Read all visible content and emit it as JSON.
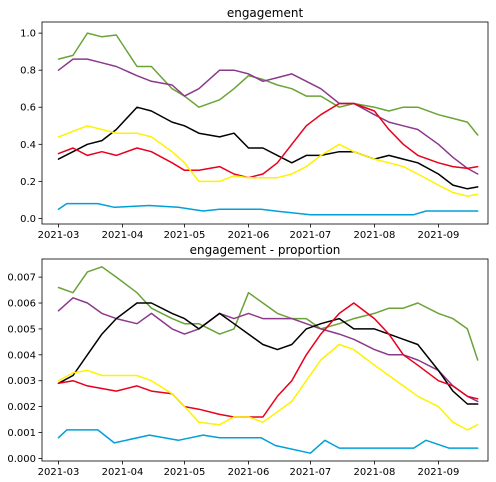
{
  "chart_data": [
    {
      "type": "line",
      "title": "engagement",
      "xlabel": "",
      "ylabel": "",
      "xlim": [
        "2021-02-21",
        "2021-09-25"
      ],
      "ylim": [
        -0.03,
        1.06
      ],
      "grid": false,
      "xticks": [
        "2021-03",
        "2021-04",
        "2021-05",
        "2021-06",
        "2021-07",
        "2021-08",
        "2021-09"
      ],
      "yticks": [
        0.0,
        0.2,
        0.4,
        0.6,
        0.8,
        1.0
      ],
      "ytick_labels": [
        "0.0",
        "0.2",
        "0.4",
        "0.6",
        "0.8",
        "1.0"
      ],
      "series": [
        {
          "color": "#6aa336",
          "x": [
            "2021-03-01",
            "2021-03-08",
            "2021-03-15",
            "2021-03-22",
            "2021-03-29",
            "2021-04-08",
            "2021-04-15",
            "2021-04-25",
            "2021-05-01",
            "2021-05-08",
            "2021-05-18",
            "2021-05-25",
            "2021-06-01",
            "2021-06-08",
            "2021-06-15",
            "2021-06-22",
            "2021-06-29",
            "2021-07-06",
            "2021-07-15",
            "2021-07-22",
            "2021-08-01",
            "2021-08-08",
            "2021-08-15",
            "2021-08-22",
            "2021-09-01",
            "2021-09-08",
            "2021-09-15",
            "2021-09-20"
          ],
          "values": [
            0.86,
            0.88,
            1.0,
            0.98,
            0.99,
            0.82,
            0.82,
            0.7,
            0.66,
            0.6,
            0.64,
            0.7,
            0.77,
            0.75,
            0.72,
            0.7,
            0.66,
            0.66,
            0.6,
            0.62,
            0.6,
            0.58,
            0.6,
            0.6,
            0.56,
            0.54,
            0.52,
            0.45
          ]
        },
        {
          "color": "#8b3a8b",
          "x": [
            "2021-03-01",
            "2021-03-08",
            "2021-03-15",
            "2021-03-22",
            "2021-03-29",
            "2021-04-08",
            "2021-04-15",
            "2021-04-25",
            "2021-05-01",
            "2021-05-08",
            "2021-05-18",
            "2021-05-25",
            "2021-06-01",
            "2021-06-08",
            "2021-06-15",
            "2021-06-22",
            "2021-06-29",
            "2021-07-06",
            "2021-07-15",
            "2021-07-22",
            "2021-08-01",
            "2021-08-08",
            "2021-08-15",
            "2021-08-22",
            "2021-09-01",
            "2021-09-08",
            "2021-09-15",
            "2021-09-20"
          ],
          "values": [
            0.8,
            0.86,
            0.86,
            0.84,
            0.82,
            0.77,
            0.74,
            0.72,
            0.66,
            0.7,
            0.8,
            0.8,
            0.78,
            0.74,
            0.76,
            0.78,
            0.74,
            0.7,
            0.62,
            0.62,
            0.56,
            0.52,
            0.5,
            0.48,
            0.4,
            0.33,
            0.27,
            0.24
          ]
        },
        {
          "color": "#000000",
          "x": [
            "2021-03-01",
            "2021-03-08",
            "2021-03-15",
            "2021-03-22",
            "2021-03-29",
            "2021-04-08",
            "2021-04-15",
            "2021-04-25",
            "2021-05-01",
            "2021-05-08",
            "2021-05-18",
            "2021-05-25",
            "2021-06-01",
            "2021-06-08",
            "2021-06-15",
            "2021-06-22",
            "2021-06-29",
            "2021-07-06",
            "2021-07-15",
            "2021-07-22",
            "2021-08-01",
            "2021-08-08",
            "2021-08-15",
            "2021-08-22",
            "2021-09-01",
            "2021-09-08",
            "2021-09-15",
            "2021-09-20"
          ],
          "values": [
            0.32,
            0.36,
            0.4,
            0.42,
            0.48,
            0.6,
            0.58,
            0.52,
            0.5,
            0.46,
            0.44,
            0.46,
            0.38,
            0.38,
            0.34,
            0.3,
            0.34,
            0.34,
            0.36,
            0.36,
            0.32,
            0.34,
            0.32,
            0.3,
            0.24,
            0.18,
            0.16,
            0.17
          ]
        },
        {
          "color": "#e8001c",
          "x": [
            "2021-03-01",
            "2021-03-08",
            "2021-03-15",
            "2021-03-22",
            "2021-03-29",
            "2021-04-08",
            "2021-04-15",
            "2021-04-25",
            "2021-05-01",
            "2021-05-08",
            "2021-05-18",
            "2021-05-25",
            "2021-06-01",
            "2021-06-08",
            "2021-06-15",
            "2021-06-22",
            "2021-06-29",
            "2021-07-06",
            "2021-07-15",
            "2021-07-22",
            "2021-08-01",
            "2021-08-08",
            "2021-08-15",
            "2021-08-22",
            "2021-09-01",
            "2021-09-08",
            "2021-09-15",
            "2021-09-20"
          ],
          "values": [
            0.35,
            0.38,
            0.34,
            0.36,
            0.34,
            0.38,
            0.36,
            0.3,
            0.26,
            0.26,
            0.28,
            0.24,
            0.22,
            0.24,
            0.3,
            0.4,
            0.5,
            0.56,
            0.62,
            0.62,
            0.58,
            0.48,
            0.4,
            0.34,
            0.3,
            0.28,
            0.27,
            0.28
          ]
        },
        {
          "color": "#fff200",
          "x": [
            "2021-03-01",
            "2021-03-08",
            "2021-03-15",
            "2021-03-22",
            "2021-03-29",
            "2021-04-08",
            "2021-04-15",
            "2021-04-25",
            "2021-05-01",
            "2021-05-08",
            "2021-05-18",
            "2021-05-25",
            "2021-06-01",
            "2021-06-08",
            "2021-06-15",
            "2021-06-22",
            "2021-06-29",
            "2021-07-06",
            "2021-07-15",
            "2021-07-22",
            "2021-08-01",
            "2021-08-08",
            "2021-08-15",
            "2021-08-22",
            "2021-09-01",
            "2021-09-08",
            "2021-09-15",
            "2021-09-20"
          ],
          "values": [
            0.44,
            0.47,
            0.5,
            0.48,
            0.46,
            0.46,
            0.44,
            0.36,
            0.3,
            0.2,
            0.2,
            0.23,
            0.22,
            0.22,
            0.22,
            0.24,
            0.28,
            0.34,
            0.4,
            0.36,
            0.32,
            0.3,
            0.28,
            0.24,
            0.18,
            0.14,
            0.12,
            0.13
          ]
        },
        {
          "color": "#00a0d8",
          "x": [
            "2021-03-01",
            "2021-03-05",
            "2021-03-20",
            "2021-03-28",
            "2021-04-14",
            "2021-04-28",
            "2021-05-10",
            "2021-05-18",
            "2021-06-07",
            "2021-06-14",
            "2021-07-01",
            "2021-07-15",
            "2021-08-20",
            "2021-08-26",
            "2021-09-06",
            "2021-09-20"
          ],
          "values": [
            0.05,
            0.08,
            0.08,
            0.06,
            0.07,
            0.06,
            0.04,
            0.05,
            0.05,
            0.04,
            0.02,
            0.02,
            0.02,
            0.04,
            0.04,
            0.04
          ]
        }
      ]
    },
    {
      "type": "line",
      "title": "engagement - proportion",
      "xlabel": "",
      "ylabel": "",
      "xlim": [
        "2021-02-21",
        "2021-09-25"
      ],
      "ylim": [
        -0.0001,
        0.0077
      ],
      "grid": false,
      "xticks": [
        "2021-03",
        "2021-04",
        "2021-05",
        "2021-06",
        "2021-07",
        "2021-08",
        "2021-09"
      ],
      "yticks": [
        0.0,
        0.001,
        0.002,
        0.003,
        0.004,
        0.005,
        0.006,
        0.007
      ],
      "ytick_labels": [
        "0.000",
        "0.001",
        "0.002",
        "0.003",
        "0.004",
        "0.005",
        "0.006",
        "0.007"
      ],
      "series": [
        {
          "color": "#6aa336",
          "x": [
            "2021-03-01",
            "2021-03-08",
            "2021-03-15",
            "2021-03-22",
            "2021-03-29",
            "2021-04-08",
            "2021-04-15",
            "2021-04-25",
            "2021-05-01",
            "2021-05-08",
            "2021-05-18",
            "2021-05-25",
            "2021-06-01",
            "2021-06-08",
            "2021-06-15",
            "2021-06-22",
            "2021-06-29",
            "2021-07-06",
            "2021-07-15",
            "2021-07-22",
            "2021-08-01",
            "2021-08-08",
            "2021-08-15",
            "2021-08-22",
            "2021-09-01",
            "2021-09-08",
            "2021-09-15",
            "2021-09-20"
          ],
          "values": [
            0.0066,
            0.0064,
            0.0072,
            0.0074,
            0.007,
            0.0064,
            0.0058,
            0.0054,
            0.0052,
            0.0052,
            0.0048,
            0.005,
            0.0064,
            0.006,
            0.0056,
            0.0054,
            0.0054,
            0.005,
            0.0052,
            0.0054,
            0.0056,
            0.0058,
            0.0058,
            0.006,
            0.0056,
            0.0054,
            0.005,
            0.0038
          ]
        },
        {
          "color": "#8b3a8b",
          "x": [
            "2021-03-01",
            "2021-03-08",
            "2021-03-15",
            "2021-03-22",
            "2021-03-29",
            "2021-04-08",
            "2021-04-15",
            "2021-04-25",
            "2021-05-01",
            "2021-05-08",
            "2021-05-18",
            "2021-05-25",
            "2021-06-01",
            "2021-06-08",
            "2021-06-15",
            "2021-06-22",
            "2021-06-29",
            "2021-07-06",
            "2021-07-15",
            "2021-07-22",
            "2021-08-01",
            "2021-08-08",
            "2021-08-15",
            "2021-08-22",
            "2021-09-01",
            "2021-09-08",
            "2021-09-15",
            "2021-09-20"
          ],
          "values": [
            0.0057,
            0.0062,
            0.006,
            0.0056,
            0.0054,
            0.0052,
            0.0056,
            0.005,
            0.0048,
            0.005,
            0.0056,
            0.0054,
            0.0056,
            0.0054,
            0.0054,
            0.0054,
            0.0052,
            0.005,
            0.0048,
            0.0046,
            0.0042,
            0.004,
            0.004,
            0.0038,
            0.0034,
            0.0028,
            0.0024,
            0.0022
          ]
        },
        {
          "color": "#000000",
          "x": [
            "2021-03-01",
            "2021-03-08",
            "2021-03-15",
            "2021-03-22",
            "2021-03-29",
            "2021-04-08",
            "2021-04-15",
            "2021-04-25",
            "2021-05-01",
            "2021-05-08",
            "2021-05-18",
            "2021-05-25",
            "2021-06-01",
            "2021-06-08",
            "2021-06-15",
            "2021-06-22",
            "2021-06-29",
            "2021-07-06",
            "2021-07-15",
            "2021-07-22",
            "2021-08-01",
            "2021-08-08",
            "2021-08-15",
            "2021-08-22",
            "2021-09-01",
            "2021-09-08",
            "2021-09-15",
            "2021-09-20"
          ],
          "values": [
            0.0029,
            0.0032,
            0.004,
            0.0048,
            0.0054,
            0.006,
            0.006,
            0.0056,
            0.0054,
            0.005,
            0.0056,
            0.0052,
            0.0048,
            0.0044,
            0.0042,
            0.0044,
            0.005,
            0.0052,
            0.0054,
            0.005,
            0.005,
            0.0048,
            0.0046,
            0.0044,
            0.0034,
            0.0026,
            0.0021,
            0.0021
          ]
        },
        {
          "color": "#e8001c",
          "x": [
            "2021-03-01",
            "2021-03-08",
            "2021-03-15",
            "2021-03-22",
            "2021-03-29",
            "2021-04-08",
            "2021-04-15",
            "2021-04-25",
            "2021-05-01",
            "2021-05-08",
            "2021-05-18",
            "2021-05-25",
            "2021-06-01",
            "2021-06-08",
            "2021-06-15",
            "2021-06-22",
            "2021-06-29",
            "2021-07-06",
            "2021-07-15",
            "2021-07-22",
            "2021-08-01",
            "2021-08-08",
            "2021-08-15",
            "2021-08-22",
            "2021-09-01",
            "2021-09-08",
            "2021-09-15",
            "2021-09-20"
          ],
          "values": [
            0.0029,
            0.003,
            0.0028,
            0.0027,
            0.0026,
            0.0028,
            0.0026,
            0.0025,
            0.002,
            0.0019,
            0.0017,
            0.0016,
            0.0016,
            0.0016,
            0.0024,
            0.003,
            0.004,
            0.0048,
            0.0056,
            0.006,
            0.0054,
            0.0048,
            0.004,
            0.0036,
            0.003,
            0.0028,
            0.0024,
            0.0023
          ]
        },
        {
          "color": "#fff200",
          "x": [
            "2021-03-01",
            "2021-03-08",
            "2021-03-15",
            "2021-03-22",
            "2021-03-29",
            "2021-04-08",
            "2021-04-15",
            "2021-04-25",
            "2021-05-01",
            "2021-05-08",
            "2021-05-18",
            "2021-05-25",
            "2021-06-01",
            "2021-06-08",
            "2021-06-15",
            "2021-06-22",
            "2021-06-29",
            "2021-07-06",
            "2021-07-15",
            "2021-07-22",
            "2021-08-01",
            "2021-08-08",
            "2021-08-15",
            "2021-08-22",
            "2021-09-01",
            "2021-09-08",
            "2021-09-15",
            "2021-09-20"
          ],
          "values": [
            0.003,
            0.0033,
            0.0034,
            0.0032,
            0.0032,
            0.0032,
            0.003,
            0.0025,
            0.002,
            0.0014,
            0.0013,
            0.0016,
            0.0016,
            0.0014,
            0.0018,
            0.0022,
            0.003,
            0.0038,
            0.0044,
            0.0042,
            0.0036,
            0.0032,
            0.0028,
            0.0024,
            0.002,
            0.0014,
            0.0011,
            0.0013
          ]
        },
        {
          "color": "#00a0d8",
          "x": [
            "2021-03-01",
            "2021-03-05",
            "2021-03-20",
            "2021-03-28",
            "2021-04-14",
            "2021-04-28",
            "2021-05-10",
            "2021-05-18",
            "2021-06-07",
            "2021-06-14",
            "2021-07-01",
            "2021-07-08",
            "2021-07-15",
            "2021-08-20",
            "2021-08-26",
            "2021-09-06",
            "2021-09-20"
          ],
          "values": [
            0.0008,
            0.0011,
            0.0011,
            0.0006,
            0.0009,
            0.0007,
            0.0009,
            0.0008,
            0.0008,
            0.0005,
            0.0002,
            0.0007,
            0.0004,
            0.0004,
            0.0007,
            0.0004,
            0.0004
          ]
        }
      ]
    }
  ]
}
